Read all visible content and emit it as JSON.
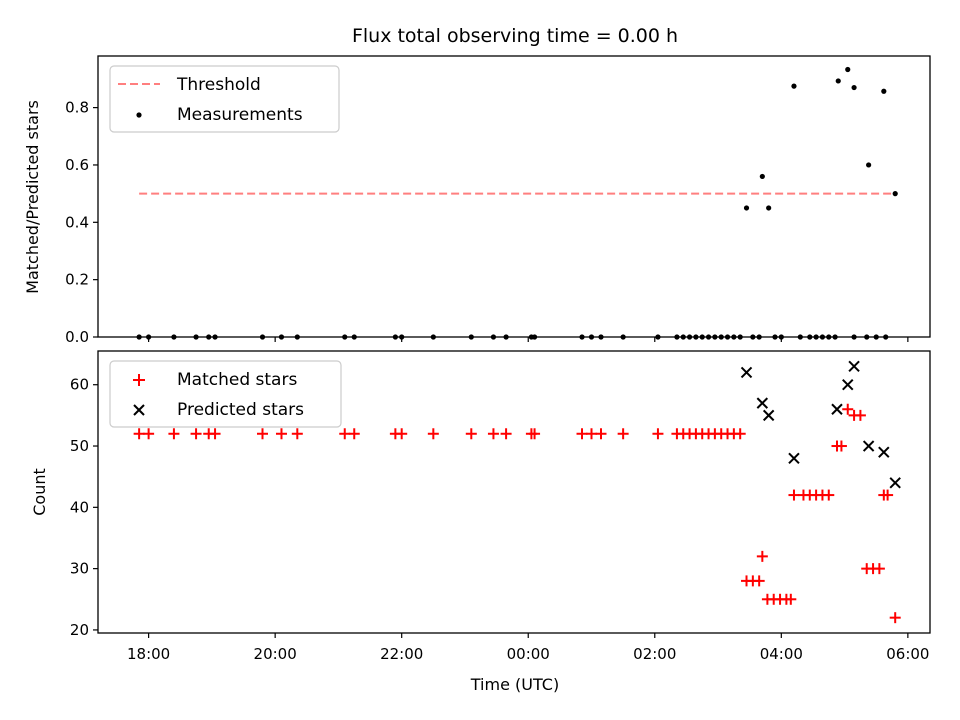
{
  "chart_data": [
    {
      "type": "scatter",
      "title": "Flux total observing time = 0.00 h",
      "xlabel": "",
      "ylabel": "Matched/Predicted stars",
      "x_unit": "hours since 00:00 UTC (negative = previous evening)",
      "xlim": [
        -6.8,
        6.35
      ],
      "ylim": [
        0.0,
        0.98
      ],
      "yticks": [
        0.0,
        0.2,
        0.4,
        0.6,
        0.8
      ],
      "ytick_labels": [
        "0.0",
        "0.2",
        "0.4",
        "0.6",
        "0.8"
      ],
      "legend_position": "top-left",
      "threshold": {
        "name": "Threshold",
        "value": 0.5,
        "x_start": -6.15,
        "x_end": 5.8,
        "color": "#ff7f7f",
        "style": "dashed"
      },
      "series": [
        {
          "name": "Measurements",
          "marker": "dot",
          "color": "#000000",
          "points": [
            [
              -6.15,
              0.0
            ],
            [
              -6.0,
              0.0
            ],
            [
              -5.6,
              0.0
            ],
            [
              -5.25,
              0.0
            ],
            [
              -5.05,
              0.0
            ],
            [
              -4.95,
              0.0
            ],
            [
              -4.2,
              0.0
            ],
            [
              -3.9,
              0.0
            ],
            [
              -3.65,
              0.0
            ],
            [
              -2.9,
              0.0
            ],
            [
              -2.75,
              0.0
            ],
            [
              -2.1,
              0.0
            ],
            [
              -2.0,
              0.0
            ],
            [
              -1.5,
              0.0
            ],
            [
              -0.9,
              0.0
            ],
            [
              -0.55,
              0.0
            ],
            [
              -0.35,
              0.0
            ],
            [
              0.05,
              0.0
            ],
            [
              0.1,
              0.0
            ],
            [
              0.85,
              0.0
            ],
            [
              1.0,
              0.0
            ],
            [
              1.15,
              0.0
            ],
            [
              1.5,
              0.0
            ],
            [
              2.05,
              0.0
            ],
            [
              2.35,
              0.0
            ],
            [
              2.45,
              0.0
            ],
            [
              2.55,
              0.0
            ],
            [
              2.65,
              0.0
            ],
            [
              2.75,
              0.0
            ],
            [
              2.85,
              0.0
            ],
            [
              2.95,
              0.0
            ],
            [
              3.05,
              0.0
            ],
            [
              3.15,
              0.0
            ],
            [
              3.25,
              0.0
            ],
            [
              3.35,
              0.0
            ],
            [
              3.55,
              0.0
            ],
            [
              3.65,
              0.0
            ],
            [
              3.9,
              0.0
            ],
            [
              4.0,
              0.0
            ],
            [
              4.3,
              0.0
            ],
            [
              4.45,
              0.0
            ],
            [
              4.55,
              0.0
            ],
            [
              4.65,
              0.0
            ],
            [
              4.75,
              0.0
            ],
            [
              4.85,
              0.0
            ],
            [
              5.15,
              0.0
            ],
            [
              5.35,
              0.0
            ],
            [
              5.5,
              0.0
            ],
            [
              5.65,
              0.0
            ],
            [
              3.45,
              0.45
            ],
            [
              3.7,
              0.56
            ],
            [
              3.8,
              0.45
            ],
            [
              4.2,
              0.875
            ],
            [
              4.9,
              0.893
            ],
            [
              5.05,
              0.933
            ],
            [
              5.15,
              0.87
            ],
            [
              5.38,
              0.6
            ],
            [
              5.62,
              0.857
            ],
            [
              5.8,
              0.5
            ]
          ]
        }
      ]
    },
    {
      "type": "scatter",
      "title": "",
      "xlabel": "Time (UTC)",
      "ylabel": "Count",
      "x_unit": "hours since 00:00 UTC (negative = previous evening)",
      "xlim": [
        -6.8,
        6.35
      ],
      "ylim": [
        19.5,
        65.5
      ],
      "yticks": [
        20,
        30,
        40,
        50,
        60
      ],
      "ytick_labels": [
        "20",
        "30",
        "40",
        "50",
        "60"
      ],
      "xticks": [
        -6,
        -4,
        -2,
        0,
        2,
        4,
        6
      ],
      "xtick_labels": [
        "18:00",
        "20:00",
        "22:00",
        "00:00",
        "02:00",
        "04:00",
        "06:00"
      ],
      "legend_position": "top-left",
      "series": [
        {
          "name": "Matched stars",
          "marker": "plus",
          "color": "#ff0000",
          "points": [
            [
              -6.15,
              52
            ],
            [
              -6.0,
              52
            ],
            [
              -5.6,
              52
            ],
            [
              -5.25,
              52
            ],
            [
              -5.05,
              52
            ],
            [
              -4.95,
              52
            ],
            [
              -4.2,
              52
            ],
            [
              -3.9,
              52
            ],
            [
              -3.65,
              52
            ],
            [
              -2.9,
              52
            ],
            [
              -2.75,
              52
            ],
            [
              -2.1,
              52
            ],
            [
              -2.0,
              52
            ],
            [
              -1.5,
              52
            ],
            [
              -0.9,
              52
            ],
            [
              -0.55,
              52
            ],
            [
              -0.35,
              52
            ],
            [
              0.05,
              52
            ],
            [
              0.1,
              52
            ],
            [
              0.85,
              52
            ],
            [
              1.0,
              52
            ],
            [
              1.15,
              52
            ],
            [
              1.5,
              52
            ],
            [
              2.05,
              52
            ],
            [
              2.35,
              52
            ],
            [
              2.45,
              52
            ],
            [
              2.55,
              52
            ],
            [
              2.65,
              52
            ],
            [
              2.75,
              52
            ],
            [
              2.85,
              52
            ],
            [
              2.95,
              52
            ],
            [
              3.05,
              52
            ],
            [
              3.15,
              52
            ],
            [
              3.25,
              52
            ],
            [
              3.35,
              52
            ],
            [
              3.45,
              28
            ],
            [
              3.55,
              28
            ],
            [
              3.65,
              28
            ],
            [
              3.7,
              32
            ],
            [
              3.78,
              25
            ],
            [
              3.88,
              25
            ],
            [
              3.98,
              25
            ],
            [
              4.08,
              25
            ],
            [
              4.15,
              25
            ],
            [
              4.2,
              42
            ],
            [
              4.35,
              42
            ],
            [
              4.45,
              42
            ],
            [
              4.55,
              42
            ],
            [
              4.65,
              42
            ],
            [
              4.75,
              42
            ],
            [
              4.88,
              50
            ],
            [
              4.95,
              50
            ],
            [
              5.05,
              56
            ],
            [
              5.15,
              55
            ],
            [
              5.25,
              55
            ],
            [
              5.35,
              30
            ],
            [
              5.45,
              30
            ],
            [
              5.55,
              30
            ],
            [
              5.62,
              42
            ],
            [
              5.68,
              42
            ],
            [
              5.8,
              22
            ]
          ]
        },
        {
          "name": "Predicted stars",
          "marker": "x",
          "color": "#000000",
          "points": [
            [
              3.45,
              62
            ],
            [
              3.7,
              57
            ],
            [
              3.8,
              55
            ],
            [
              4.2,
              48
            ],
            [
              4.88,
              56
            ],
            [
              5.05,
              60
            ],
            [
              5.15,
              63
            ],
            [
              5.38,
              50
            ],
            [
              5.62,
              49
            ],
            [
              5.8,
              44
            ]
          ]
        }
      ]
    }
  ]
}
